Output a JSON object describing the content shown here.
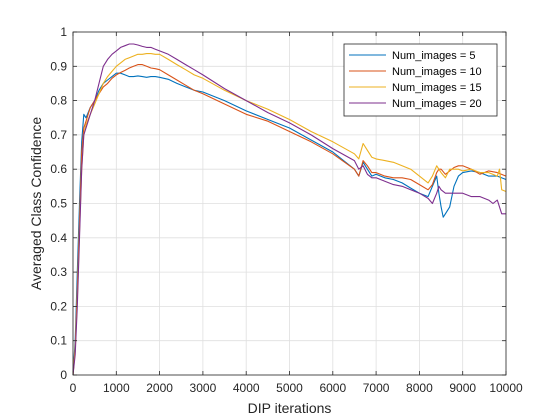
{
  "chart_data": {
    "type": "line",
    "title": "",
    "xlabel": "DIP iterations",
    "ylabel": "Averaged Class Confidence",
    "xlim": [
      0,
      10000
    ],
    "ylim": [
      0,
      1
    ],
    "xticks": [
      0,
      1000,
      2000,
      3000,
      4000,
      5000,
      6000,
      7000,
      8000,
      9000,
      10000
    ],
    "yticks": [
      0,
      0.1,
      0.2,
      0.3,
      0.4,
      0.5,
      0.6,
      0.7,
      0.8,
      0.9,
      1
    ],
    "xtick_labels": [
      "0",
      "1000",
      "2000",
      "3000",
      "4000",
      "5000",
      "6000",
      "7000",
      "8000",
      "9000",
      "10000"
    ],
    "ytick_labels": [
      "0",
      "0.1",
      "0.2",
      "0.3",
      "0.4",
      "0.5",
      "0.6",
      "0.7",
      "0.8",
      "0.9",
      "1"
    ],
    "grid": true,
    "legend_position": "top-right",
    "series": [
      {
        "name": "Num_images = 5",
        "color": "#0072BD",
        "x": [
          0,
          50,
          100,
          150,
          200,
          250,
          300,
          400,
          500,
          600,
          700,
          800,
          900,
          1000,
          1100,
          1200,
          1300,
          1400,
          1500,
          1600,
          1700,
          1800,
          1900,
          2000,
          2200,
          2400,
          2600,
          2800,
          3000,
          3500,
          4000,
          4500,
          5000,
          5500,
          6000,
          6500,
          6600,
          6700,
          6800,
          6900,
          7000,
          7200,
          7400,
          7600,
          7800,
          8000,
          8200,
          8300,
          8400,
          8450,
          8500,
          8550,
          8600,
          8700,
          8800,
          8900,
          9000,
          9200,
          9400,
          9600,
          9800,
          10000
        ],
        "y": [
          0,
          0.1,
          0.3,
          0.5,
          0.68,
          0.76,
          0.75,
          0.78,
          0.8,
          0.83,
          0.85,
          0.86,
          0.87,
          0.88,
          0.88,
          0.875,
          0.87,
          0.87,
          0.872,
          0.87,
          0.868,
          0.87,
          0.87,
          0.868,
          0.862,
          0.85,
          0.84,
          0.83,
          0.825,
          0.8,
          0.77,
          0.745,
          0.72,
          0.685,
          0.65,
          0.6,
          0.58,
          0.62,
          0.6,
          0.58,
          0.585,
          0.575,
          0.57,
          0.56,
          0.545,
          0.53,
          0.52,
          0.55,
          0.58,
          0.53,
          0.49,
          0.46,
          0.47,
          0.49,
          0.55,
          0.58,
          0.59,
          0.595,
          0.59,
          0.58,
          0.58,
          0.57
        ]
      },
      {
        "name": "Num_images = 10",
        "color": "#D95319",
        "x": [
          0,
          50,
          100,
          150,
          200,
          250,
          300,
          400,
          500,
          600,
          700,
          800,
          900,
          1000,
          1100,
          1200,
          1300,
          1400,
          1500,
          1600,
          1700,
          1800,
          1900,
          2000,
          2200,
          2400,
          2600,
          2800,
          3000,
          3500,
          4000,
          4500,
          5000,
          5500,
          6000,
          6500,
          6600,
          6700,
          6800,
          6900,
          7000,
          7200,
          7400,
          7600,
          7800,
          8000,
          8200,
          8300,
          8400,
          8450,
          8500,
          8600,
          8700,
          8800,
          8900,
          9000,
          9200,
          9400,
          9600,
          9800,
          10000
        ],
        "y": [
          0,
          0.08,
          0.25,
          0.45,
          0.65,
          0.72,
          0.74,
          0.78,
          0.8,
          0.82,
          0.84,
          0.85,
          0.865,
          0.875,
          0.882,
          0.888,
          0.895,
          0.9,
          0.905,
          0.905,
          0.9,
          0.895,
          0.893,
          0.89,
          0.875,
          0.86,
          0.845,
          0.83,
          0.82,
          0.79,
          0.76,
          0.74,
          0.71,
          0.68,
          0.645,
          0.6,
          0.58,
          0.625,
          0.61,
          0.59,
          0.59,
          0.58,
          0.575,
          0.575,
          0.57,
          0.555,
          0.54,
          0.555,
          0.59,
          0.6,
          0.6,
          0.585,
          0.595,
          0.605,
          0.61,
          0.61,
          0.6,
          0.585,
          0.595,
          0.59,
          0.58
        ]
      },
      {
        "name": "Num_images = 15",
        "color": "#EDB120",
        "x": [
          0,
          50,
          100,
          150,
          200,
          250,
          300,
          400,
          500,
          600,
          700,
          800,
          900,
          1000,
          1100,
          1200,
          1300,
          1400,
          1500,
          1600,
          1700,
          1800,
          1900,
          2000,
          2200,
          2400,
          2600,
          2800,
          3000,
          3500,
          4000,
          4500,
          5000,
          5500,
          6000,
          6500,
          6600,
          6700,
          6800,
          6900,
          7000,
          7200,
          7400,
          7600,
          7800,
          8000,
          8200,
          8300,
          8400,
          8450,
          8500,
          8600,
          8700,
          8800,
          8900,
          9000,
          9200,
          9400,
          9600,
          9800,
          9850,
          9900,
          10000
        ],
        "y": [
          0,
          0.07,
          0.22,
          0.42,
          0.6,
          0.7,
          0.73,
          0.76,
          0.79,
          0.82,
          0.85,
          0.87,
          0.885,
          0.9,
          0.91,
          0.92,
          0.925,
          0.93,
          0.935,
          0.935,
          0.937,
          0.937,
          0.935,
          0.935,
          0.92,
          0.905,
          0.89,
          0.875,
          0.865,
          0.83,
          0.8,
          0.775,
          0.745,
          0.71,
          0.68,
          0.645,
          0.63,
          0.675,
          0.655,
          0.635,
          0.63,
          0.625,
          0.62,
          0.61,
          0.6,
          0.58,
          0.56,
          0.58,
          0.61,
          0.6,
          0.59,
          0.575,
          0.6,
          0.6,
          0.6,
          0.595,
          0.6,
          0.59,
          0.59,
          0.58,
          0.6,
          0.54,
          0.535
        ]
      },
      {
        "name": "Num_images = 20",
        "color": "#7E2F8E",
        "x": [
          0,
          50,
          100,
          150,
          200,
          250,
          300,
          400,
          500,
          600,
          700,
          800,
          900,
          1000,
          1100,
          1200,
          1300,
          1400,
          1500,
          1600,
          1700,
          1800,
          1900,
          2000,
          2200,
          2400,
          2600,
          2800,
          3000,
          3500,
          4000,
          4500,
          5000,
          5500,
          6000,
          6500,
          6600,
          6700,
          6800,
          6900,
          7000,
          7200,
          7400,
          7600,
          7800,
          8000,
          8200,
          8300,
          8400,
          8450,
          8500,
          8600,
          8800,
          9000,
          9200,
          9400,
          9600,
          9700,
          9800,
          9900,
          10000
        ],
        "y": [
          0,
          0.06,
          0.2,
          0.4,
          0.6,
          0.7,
          0.72,
          0.76,
          0.8,
          0.85,
          0.9,
          0.92,
          0.935,
          0.945,
          0.955,
          0.96,
          0.965,
          0.965,
          0.962,
          0.958,
          0.955,
          0.955,
          0.95,
          0.945,
          0.935,
          0.92,
          0.905,
          0.89,
          0.875,
          0.835,
          0.8,
          0.765,
          0.735,
          0.7,
          0.66,
          0.625,
          0.6,
          0.61,
          0.585,
          0.575,
          0.575,
          0.565,
          0.555,
          0.55,
          0.54,
          0.53,
          0.515,
          0.5,
          0.53,
          0.55,
          0.54,
          0.53,
          0.53,
          0.53,
          0.52,
          0.52,
          0.51,
          0.5,
          0.51,
          0.47,
          0.47
        ]
      }
    ]
  }
}
